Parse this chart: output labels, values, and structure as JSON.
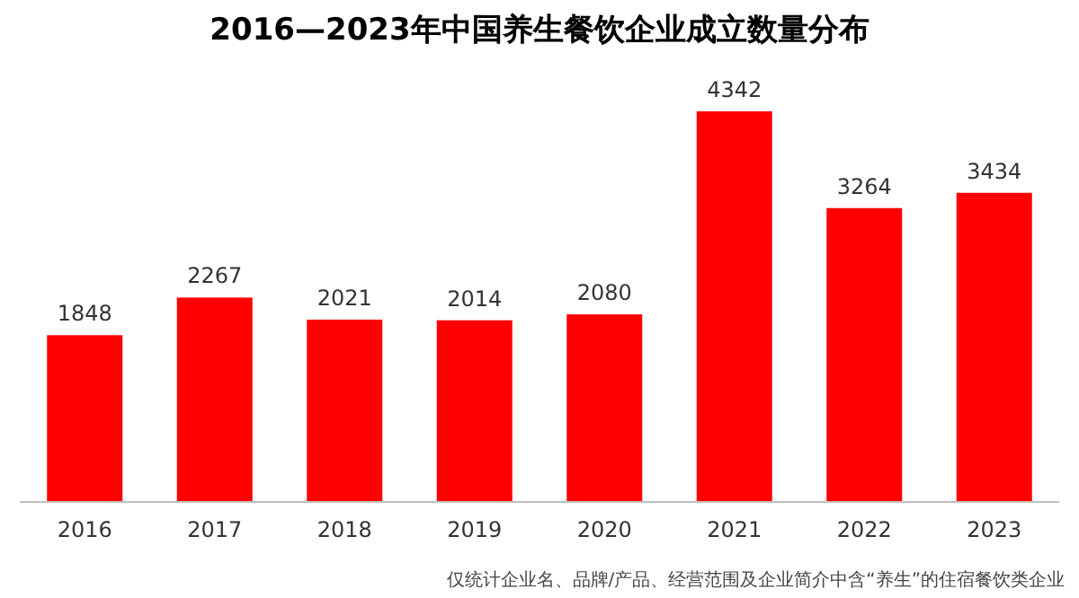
{
  "chart_data": {
    "type": "bar",
    "title": "2016—2023年中国养生餐饮企业成立数量分布",
    "categories": [
      "2016",
      "2017",
      "2018",
      "2019",
      "2020",
      "2021",
      "2022",
      "2023"
    ],
    "values": [
      1848,
      2267,
      2021,
      2014,
      2080,
      4342,
      3264,
      3434
    ],
    "color": "#ff0000",
    "data_labels": true,
    "annotations": [
      "仅统计企业名、品牌/产品、经营范围及企业简介中含“养生”的住宿餐饮类企业"
    ]
  }
}
